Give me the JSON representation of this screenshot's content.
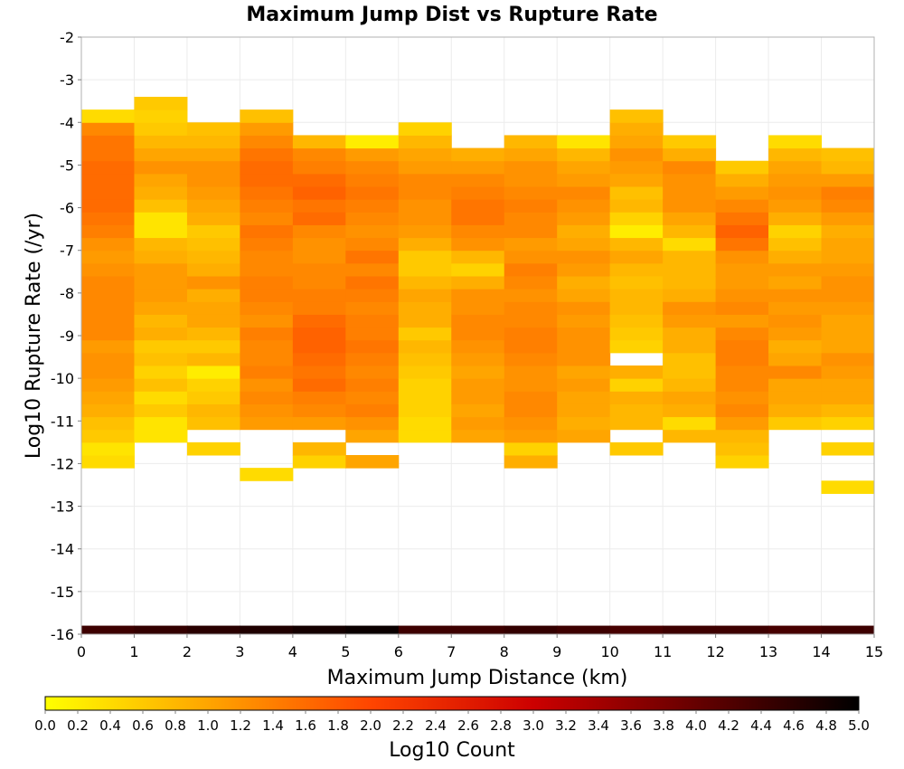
{
  "chart_data": {
    "type": "heatmap",
    "title": "Maximum Jump Dist vs Rupture Rate",
    "xlabel": "Maximum Jump Distance (km)",
    "ylabel": "Log10 Rupture Rate (/yr)",
    "colorbar_label": "Log10 Count",
    "xlim": [
      0,
      15
    ],
    "ylim": [
      -16,
      -2
    ],
    "x_ticks": [
      0,
      1,
      2,
      3,
      4,
      5,
      6,
      7,
      8,
      9,
      10,
      11,
      12,
      13,
      14,
      15
    ],
    "y_ticks": [
      -2,
      -3,
      -4,
      -5,
      -6,
      -7,
      -8,
      -9,
      -10,
      -11,
      -12,
      -13,
      -14,
      -15,
      -16
    ],
    "colorbar_range": [
      0.0,
      5.0
    ],
    "colorbar_ticks": [
      "0.0",
      "0.2",
      "0.4",
      "0.6",
      "0.8",
      "1.0",
      "1.2",
      "1.4",
      "1.6",
      "1.8",
      "2.0",
      "2.2",
      "2.4",
      "2.6",
      "2.8",
      "3.0",
      "3.2",
      "3.4",
      "3.6",
      "3.8",
      "4.0",
      "4.2",
      "4.4",
      "4.6",
      "4.8",
      "5.0"
    ],
    "colormap": [
      "#ffff00",
      "#ffa500",
      "#ff4500",
      "#cc0000",
      "#660000",
      "#000000"
    ],
    "grid": true,
    "bin_width_x": 1,
    "bin_height_y": 0.3,
    "columns": [
      {
        "x_start": 0,
        "y_start": -12.1,
        "values": [
          0.4,
          0.3,
          0.6,
          0.7,
          0.9,
          1.0,
          1.1,
          1.2,
          1.2,
          1.1,
          1.3,
          1.3,
          1.3,
          1.3,
          1.3,
          1.2,
          1.1,
          1.2,
          1.4,
          1.5,
          1.6,
          1.6,
          1.6,
          1.6,
          1.5,
          1.5,
          1.3,
          0.4
        ]
      },
      {
        "x_start": 1,
        "y_start": -11.5,
        "values": [
          0.3,
          0.3,
          0.6,
          0.4,
          0.7,
          0.5,
          0.7,
          0.6,
          0.9,
          0.8,
          1.0,
          1.1,
          1.1,
          1.1,
          0.9,
          0.8,
          0.3,
          0.3,
          0.7,
          0.9,
          1.0,
          1.2,
          1.0,
          0.8,
          0.6,
          0.5,
          0.6
        ]
      },
      {
        "x_start": 2,
        "y_start": -11.8,
        "values": [
          0.5,
          null,
          0.7,
          0.8,
          0.6,
          0.5,
          0.2,
          0.8,
          0.6,
          0.8,
          1.0,
          1.0,
          0.9,
          1.2,
          0.9,
          0.8,
          0.7,
          0.6,
          0.9,
          1.0,
          1.1,
          1.2,
          1.2,
          1.0,
          0.8,
          0.7
        ]
      },
      {
        "x_start": 3,
        "y_start": -12.4,
        "values": [
          0.4,
          null,
          null,
          null,
          1.1,
          1.2,
          1.3,
          1.2,
          1.4,
          1.3,
          1.3,
          1.4,
          1.2,
          1.3,
          1.4,
          1.4,
          1.3,
          1.3,
          1.4,
          1.5,
          1.3,
          1.4,
          1.5,
          1.6,
          1.6,
          1.5,
          1.3,
          1.1,
          0.7
        ]
      },
      {
        "x_start": 4,
        "y_start": -12.1,
        "values": [
          0.5,
          0.8,
          null,
          1.1,
          1.3,
          1.4,
          1.6,
          1.5,
          1.6,
          1.7,
          1.7,
          1.6,
          1.4,
          1.4,
          1.3,
          1.3,
          1.2,
          1.2,
          1.3,
          1.6,
          1.5,
          1.7,
          1.6,
          1.4,
          1.3,
          0.8
        ]
      },
      {
        "x_start": 5,
        "y_start": -12.1,
        "values": [
          1.0,
          null,
          1.0,
          1.2,
          1.4,
          1.3,
          1.4,
          1.3,
          1.4,
          1.5,
          1.4,
          1.4,
          1.3,
          1.4,
          1.5,
          1.3,
          1.5,
          1.3,
          1.2,
          1.3,
          1.4,
          1.5,
          1.4,
          1.3,
          1.1,
          0.2
        ]
      },
      {
        "x_start": 6,
        "y_start": -11.5,
        "values": [
          0.4,
          0.4,
          0.5,
          0.5,
          0.5,
          0.6,
          0.7,
          0.8,
          0.6,
          0.9,
          0.9,
          1.0,
          0.8,
          0.6,
          0.6,
          0.9,
          1.1,
          1.2,
          1.2,
          1.3,
          1.3,
          1.1,
          1.0,
          0.8,
          0.5
        ]
      },
      {
        "x_start": 7,
        "y_start": -11.5,
        "values": [
          1.0,
          1.1,
          1.0,
          1.1,
          1.1,
          1.0,
          1.1,
          1.2,
          1.3,
          1.3,
          1.2,
          1.2,
          0.9,
          0.5,
          0.8,
          1.2,
          1.3,
          1.5,
          1.5,
          1.4,
          1.3,
          1.1,
          0.9
        ]
      },
      {
        "x_start": 8,
        "y_start": -12.1,
        "values": [
          0.9,
          0.5,
          1.1,
          1.2,
          1.3,
          1.3,
          1.2,
          1.2,
          1.3,
          1.4,
          1.4,
          1.3,
          1.3,
          1.2,
          1.3,
          1.4,
          1.2,
          1.1,
          1.3,
          1.3,
          1.4,
          1.3,
          1.2,
          1.2,
          1.0,
          0.8
        ]
      },
      {
        "x_start": 9,
        "y_start": -11.5,
        "values": [
          1.0,
          0.9,
          1.0,
          1.0,
          1.1,
          1.0,
          1.2,
          1.2,
          1.2,
          1.1,
          1.2,
          1.0,
          0.9,
          1.1,
          1.2,
          1.0,
          0.9,
          1.1,
          1.2,
          1.3,
          1.1,
          1.0,
          0.8,
          0.3
        ]
      },
      {
        "x_start": 10,
        "y_start": -11.8,
        "values": [
          0.6,
          null,
          0.8,
          0.8,
          0.9,
          0.5,
          0.9,
          null,
          0.5,
          0.6,
          0.7,
          0.8,
          0.8,
          0.7,
          0.8,
          1.0,
          0.8,
          0.2,
          0.5,
          0.8,
          0.7,
          1.0,
          1.1,
          1.2,
          1.0,
          0.9,
          0.7
        ]
      },
      {
        "x_start": 11,
        "y_start": -11.5,
        "values": [
          0.8,
          0.4,
          0.9,
          1.0,
          0.8,
          0.7,
          0.7,
          0.9,
          0.9,
          1.1,
          1.2,
          0.9,
          0.8,
          0.8,
          0.8,
          0.4,
          0.8,
          1.0,
          1.2,
          1.2,
          1.2,
          1.3,
          0.9,
          0.6
        ]
      },
      {
        "x_start": 12,
        "y_start": -12.1,
        "values": [
          0.5,
          0.7,
          0.8,
          1.1,
          1.3,
          1.2,
          1.3,
          1.3,
          1.4,
          1.4,
          1.3,
          1.1,
          1.3,
          1.2,
          1.1,
          1.1,
          1.2,
          1.5,
          1.7,
          1.5,
          1.3,
          1.1,
          0.9,
          0.6
        ]
      },
      {
        "x_start": 13,
        "y_start": -11.2,
        "values": [
          0.6,
          0.9,
          1.0,
          1.0,
          1.3,
          1.0,
          0.9,
          1.1,
          1.2,
          1.1,
          1.2,
          1.0,
          1.1,
          0.9,
          0.7,
          0.5,
          0.9,
          1.1,
          1.2,
          1.1,
          1.0,
          0.8,
          0.4
        ]
      },
      {
        "x_start": 14,
        "y_start": -12.7,
        "values": [
          0.4,
          null,
          null,
          0.5,
          null,
          0.5,
          0.8,
          1.0,
          1.0,
          1.1,
          1.2,
          1.0,
          1.0,
          1.0,
          1.1,
          1.2,
          1.2,
          1.1,
          1.0,
          1.0,
          0.9,
          1.1,
          1.3,
          1.4,
          1.1,
          0.8,
          0.7
        ]
      }
    ],
    "bottom_row": {
      "y_start": -16.0,
      "height": 0.2,
      "values": [
        4.4,
        4.5,
        4.6,
        4.7,
        4.8,
        4.9,
        4.4,
        4.4,
        4.5,
        4.4,
        4.3,
        4.4,
        4.4,
        4.3,
        4.4
      ]
    }
  }
}
